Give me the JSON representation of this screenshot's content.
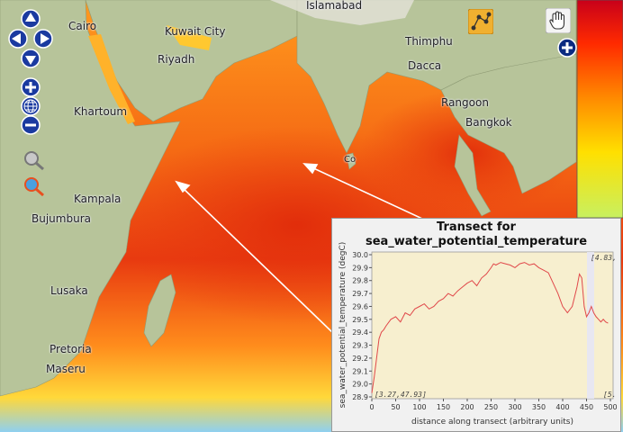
{
  "map": {
    "cities": [
      {
        "name": "Cairo"
      },
      {
        "name": "Kuwait City"
      },
      {
        "name": "Islamabad"
      },
      {
        "name": "Thimphu"
      },
      {
        "name": "Riyadh"
      },
      {
        "name": "Dacca"
      },
      {
        "name": "Khartoum"
      },
      {
        "name": "Rangoon"
      },
      {
        "name": "Bangkok"
      },
      {
        "name": "Kampala"
      },
      {
        "name": "Bujumbura"
      },
      {
        "name": "Lusaka"
      },
      {
        "name": "Pretoria"
      },
      {
        "name": "Maseru"
      },
      {
        "name": "Co"
      }
    ]
  },
  "colors": {
    "ocean_hot": "#e83a10",
    "ocean_warm": "#ff9a1e",
    "ocean_cool": "#8fd0f0",
    "land": "#b7c49a",
    "panel_plot_bg": "#f7efcf",
    "line": "#e0484a"
  },
  "controls": {
    "pan": "pan-arrows",
    "zoom_in": "+",
    "zoom_out": "−",
    "side_add": "+"
  },
  "panel": {
    "title_line1": "Transect for",
    "title_line2": "sea_water_potential_temperature",
    "start_coord": "[3.27,47.93]",
    "end_coord_top": "[4.83,",
    "end_coord_bottom": "[5."
  },
  "chart_data": {
    "type": "line",
    "title": "Transect for sea_water_potential_temperature",
    "xlabel": "distance along transect (arbitrary units)",
    "ylabel": "sea_water_potential_temperature (degC)",
    "xlim": [
      0,
      500
    ],
    "ylim": [
      28.9,
      30.0
    ],
    "xticks": [
      0,
      50,
      100,
      150,
      200,
      250,
      300,
      350,
      400,
      450,
      500
    ],
    "yticks": [
      28.9,
      29.0,
      29.1,
      29.2,
      29.3,
      29.4,
      29.5,
      29.6,
      29.7,
      29.8,
      29.9,
      30.0
    ],
    "grid": false,
    "series": [
      {
        "x": [
          0,
          5,
          10,
          15,
          20,
          25,
          30,
          40,
          50,
          60,
          70,
          80,
          90,
          100,
          110,
          120,
          130,
          140,
          150,
          160,
          170,
          180,
          190,
          200,
          210,
          220,
          230,
          240,
          250,
          255,
          260,
          270,
          280,
          290,
          300,
          310,
          320,
          330,
          340,
          350,
          360,
          370,
          380,
          390,
          400,
          410,
          420,
          430,
          435,
          440,
          445,
          450,
          455,
          460,
          465,
          470,
          475,
          480,
          485,
          490,
          495
        ],
        "y": [
          28.93,
          29.05,
          29.2,
          29.35,
          29.4,
          29.42,
          29.45,
          29.5,
          29.52,
          29.48,
          29.55,
          29.53,
          29.58,
          29.6,
          29.62,
          29.58,
          29.6,
          29.64,
          29.66,
          29.7,
          29.68,
          29.72,
          29.75,
          29.78,
          29.8,
          29.76,
          29.82,
          29.85,
          29.9,
          29.93,
          29.92,
          29.94,
          29.93,
          29.92,
          29.9,
          29.93,
          29.94,
          29.92,
          29.93,
          29.9,
          29.88,
          29.86,
          29.78,
          29.7,
          29.6,
          29.55,
          29.6,
          29.75,
          29.85,
          29.82,
          29.6,
          29.52,
          29.55,
          29.6,
          29.55,
          29.52,
          29.5,
          29.48,
          29.5,
          29.48,
          29.47
        ]
      }
    ]
  }
}
